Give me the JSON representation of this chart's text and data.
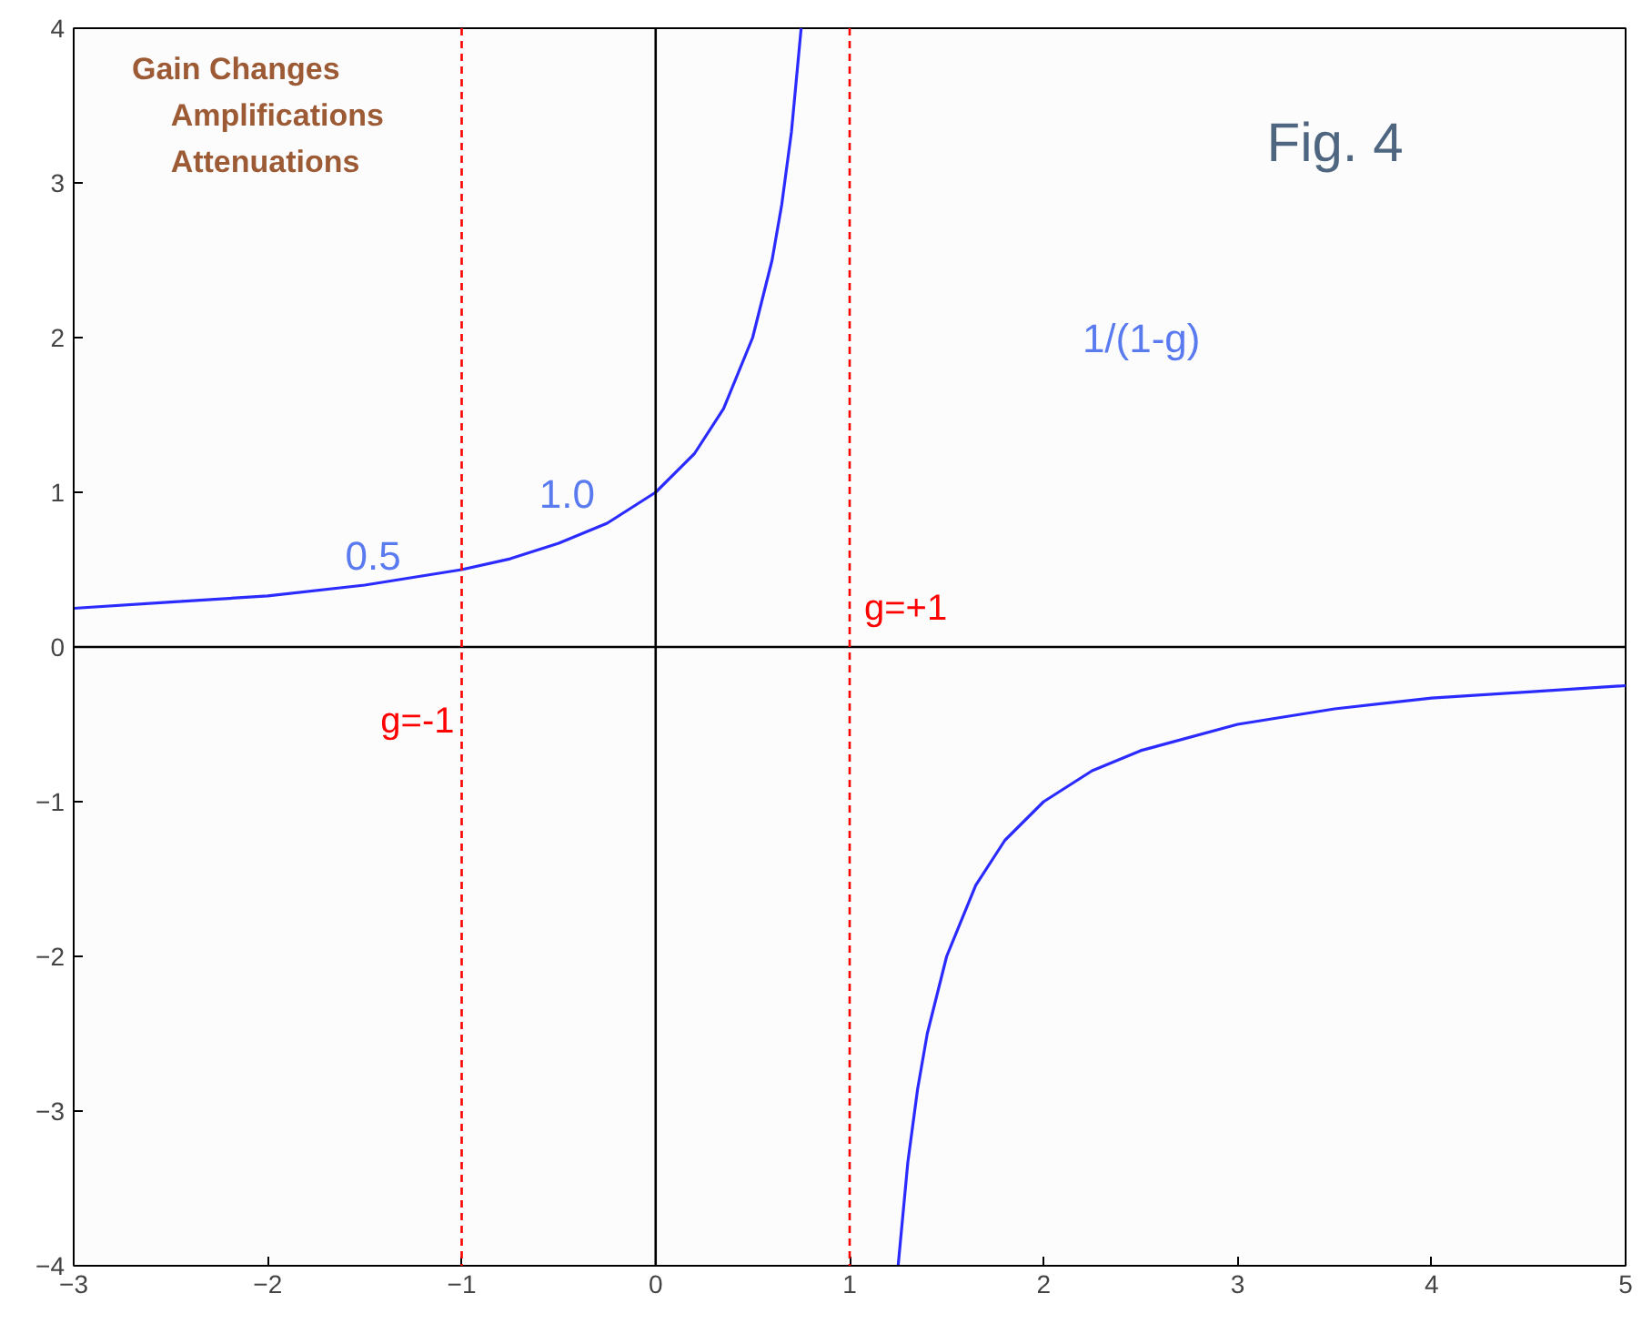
{
  "chart_data": {
    "type": "line",
    "xlim": [
      -3,
      5
    ],
    "ylim": [
      -4,
      4
    ],
    "xticks": [
      -3,
      -2,
      -1,
      0,
      1,
      2,
      3,
      4,
      5
    ],
    "yticks": [
      -4,
      -3,
      -2,
      -1,
      0,
      1,
      2,
      3,
      4
    ],
    "grid": false,
    "marker": "none",
    "line_style": "solid",
    "series": [
      {
        "color": "#2b2bff",
        "x": [
          -3,
          -2.5,
          -2,
          -1.5,
          -1,
          -0.75,
          -0.5,
          -0.25,
          0,
          0.2,
          0.35,
          0.5,
          0.6,
          0.65,
          0.7,
          0.75
        ],
        "values": [
          0.25,
          0.29,
          0.33,
          0.4,
          0.5,
          0.57,
          0.67,
          0.8,
          1,
          1.25,
          1.54,
          2,
          2.5,
          2.86,
          3.33,
          4
        ]
      },
      {
        "color": "#2b2bff",
        "x": [
          1.25,
          1.3,
          1.35,
          1.4,
          1.5,
          1.65,
          1.8,
          2,
          2.25,
          2.5,
          3,
          3.5,
          4,
          4.5,
          5
        ],
        "values": [
          -4,
          -3.33,
          -2.86,
          -2.5,
          -2,
          -1.54,
          -1.25,
          -1,
          -0.8,
          -0.67,
          -0.5,
          -0.4,
          -0.33,
          -0.29,
          -0.25
        ]
      }
    ],
    "ref_lines": [
      {
        "axis": "y",
        "value": 0,
        "color": "#000000",
        "line_style": "solid"
      },
      {
        "axis": "x",
        "value": 0,
        "color": "#000000",
        "line_style": "solid"
      },
      {
        "axis": "x",
        "value": -1,
        "label": "g=-1",
        "color": "#ff0000",
        "line_style": "dashed"
      },
      {
        "axis": "x",
        "value": 1,
        "label": "g=+1",
        "color": "#ff0000",
        "line_style": "dashed"
      }
    ],
    "annotations": [
      "Fig. 4",
      "Gain Changes",
      "Amplifications",
      "Attenuations",
      "1/(1-g)",
      "0.5",
      "1.0"
    ]
  }
}
